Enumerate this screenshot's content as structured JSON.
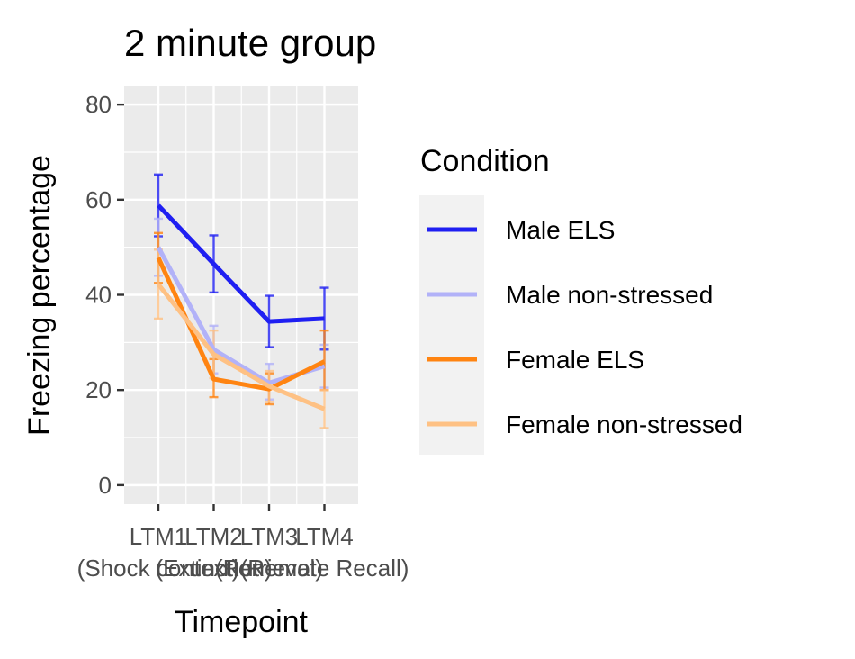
{
  "chart_data": {
    "type": "line",
    "title": "2 minute group",
    "xlabel": "Timepoint",
    "ylabel": "Freezing percentage",
    "x_tick_labels": [
      {
        "line1": "LTM1",
        "line2": "(Shock context)"
      },
      {
        "line1": "LTM2",
        "line2": "(Extinction)"
      },
      {
        "line1": "LTM3",
        "line2": "(Retrieval)"
      },
      {
        "line1": "LTM4",
        "line2": "(Remote Recall)"
      }
    ],
    "y_ticks": [
      0,
      20,
      40,
      60,
      80
    ],
    "ylim": [
      -4,
      84
    ],
    "grid": true,
    "legend": {
      "title": "Condition",
      "position": "right"
    },
    "series": [
      {
        "name": "Male ELS",
        "color": "#1f1ff2",
        "values": [
          58.8,
          46.5,
          34.4,
          35.0
        ],
        "err_low": [
          52.3,
          40.5,
          29.0,
          28.5
        ],
        "err_high": [
          65.3,
          52.5,
          39.8,
          41.5
        ]
      },
      {
        "name": "Male non-stressed",
        "color": "#b2b2f8",
        "values": [
          50.0,
          28.5,
          21.5,
          25.0
        ],
        "err_low": [
          44.0,
          23.5,
          18.0,
          20.5
        ],
        "err_high": [
          56.0,
          33.5,
          25.5,
          29.5
        ]
      },
      {
        "name": "Female ELS",
        "color": "#ff8411",
        "values": [
          47.8,
          22.3,
          20.2,
          26.0
        ],
        "err_low": [
          42.5,
          18.5,
          17.0,
          20.0
        ],
        "err_high": [
          53.0,
          26.5,
          23.5,
          32.5
        ]
      },
      {
        "name": "Female non-stressed",
        "color": "#fec184",
        "values": [
          42.2,
          27.5,
          20.8,
          16.0
        ],
        "err_low": [
          35.0,
          22.5,
          17.5,
          12.0
        ],
        "err_high": [
          49.5,
          32.5,
          24.0,
          20.0
        ]
      }
    ]
  }
}
